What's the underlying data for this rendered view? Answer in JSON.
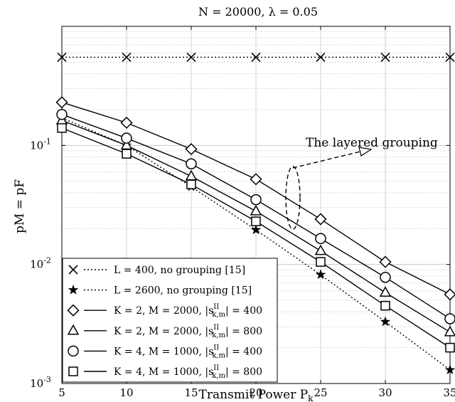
{
  "chart_data": {
    "type": "line",
    "title": "N = 20000, λ = 0.05",
    "xlabel": "Transmit Power P",
    "xlabel_sub": "k",
    "ylabel": "pM = pF",
    "xlim": [
      5,
      35
    ],
    "ylim": [
      0.001,
      1
    ],
    "yscale": "log",
    "grid": true,
    "legend_position": "bottom-left",
    "x_ticks": [
      "5",
      "10",
      "15",
      "20",
      "25",
      "30",
      "35"
    ],
    "y_ticks": [
      {
        "base": "10",
        "exp": "-1"
      },
      {
        "base": "10",
        "exp": "-2"
      },
      {
        "base": "10",
        "exp": "-3"
      }
    ],
    "x": [
      5,
      10,
      15,
      20,
      25,
      30,
      35
    ],
    "series": [
      {
        "name": "L = 400,   no grouping [15]",
        "marker": "x",
        "line": "dotted",
        "values": [
          0.55,
          0.55,
          0.55,
          0.55,
          0.55,
          0.55,
          0.55
        ]
      },
      {
        "name": "L = 2600, no grouping [15]",
        "marker": "star",
        "line": "dotted",
        "values": [
          0.17,
          0.1,
          0.045,
          0.0195,
          0.0082,
          0.0033,
          0.0013
        ]
      },
      {
        "name": "K = 2, M = 2000, |s(II)k,m| = 400",
        "marker": "diamond",
        "line": "solid",
        "values": [
          0.23,
          0.155,
          0.093,
          0.052,
          0.024,
          0.0105,
          0.0056
        ]
      },
      {
        "name": "K = 2, M = 2000, |s(II)k,m| = 800",
        "marker": "triangle",
        "line": "solid",
        "values": [
          0.162,
          0.1,
          0.055,
          0.028,
          0.013,
          0.0058,
          0.0027
        ]
      },
      {
        "name": "K = 4, M = 1000, |s(II)k,m| = 400",
        "marker": "circle",
        "line": "solid",
        "values": [
          0.182,
          0.115,
          0.07,
          0.035,
          0.0165,
          0.0078,
          0.0035
        ]
      },
      {
        "name": "K = 4, M = 1000, |s(II)k,m| = 800",
        "marker": "square",
        "line": "solid",
        "values": [
          0.14,
          0.085,
          0.047,
          0.023,
          0.0105,
          0.0045,
          0.002
        ]
      }
    ],
    "annotation": "The layered grouping",
    "legend": [
      {
        "main": "L = 400,   no grouping [15]"
      },
      {
        "main": "L = 2600, no grouping [15]"
      },
      {
        "main": "K = 2, M = 2000, |s",
        "sup": "II",
        "sub": "k,m",
        "tail": "| = 400"
      },
      {
        "main": "K = 2, M = 2000, |s",
        "sup": "II",
        "sub": "k,m",
        "tail": "| = 800"
      },
      {
        "main": "K = 4, M = 1000, |s",
        "sup": "II",
        "sub": "k,m",
        "tail": "| = 400"
      },
      {
        "main": "K = 4, M = 1000, |s",
        "sup": "II",
        "sub": "k,m",
        "tail": "| = 800"
      }
    ]
  }
}
